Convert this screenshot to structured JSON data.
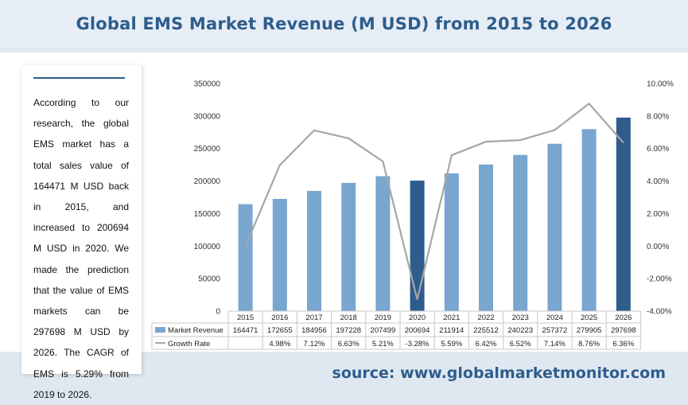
{
  "title": "Global EMS Market Revenue (M USD) from 2015 to 2026",
  "description": "According to our research, the global EMS market has a total sales value of 164471 M USD back in 2015, and increased to 200694 M USD in 2020. We made the prediction that the value of EMS markets can be 297698 M USD by 2026. The CAGR of EMS is 5.29% from 2019 to 2026.",
  "source": "source: www.globalmarketmonitor.com",
  "colors": {
    "bar": "#78a6cf",
    "bar_highlight": "#2e5d8c",
    "line": "#a6a6a6",
    "title": "#2e5d8c"
  },
  "chart_data": {
    "type": "bar",
    "categories": [
      "2015",
      "2016",
      "2017",
      "2018",
      "2019",
      "2020",
      "2021",
      "2022",
      "2023",
      "2024",
      "2025",
      "2026"
    ],
    "highlight_categories": [
      "2020",
      "2026"
    ],
    "series": [
      {
        "name": "Market Revenue",
        "type": "bar",
        "axis": "left",
        "values": [
          164471,
          172655,
          184956,
          197228,
          207499,
          200694,
          211914,
          225512,
          240223,
          257372,
          279905,
          297698
        ],
        "labels": [
          "164471",
          "172655",
          "184956",
          "197228",
          "207499",
          "200694",
          "211914",
          "225512",
          "240223",
          "257372",
          "279905",
          "297698"
        ]
      },
      {
        "name": "Growth Rate",
        "type": "line",
        "axis": "right",
        "values": [
          0,
          4.98,
          7.12,
          6.63,
          5.21,
          -3.28,
          5.59,
          6.42,
          6.52,
          7.14,
          8.76,
          6.36
        ],
        "labels": [
          "",
          "4.98%",
          "7.12%",
          "6.63%",
          "5.21%",
          "-3.28%",
          "5.59%",
          "6.42%",
          "6.52%",
          "7.14%",
          "8.76%",
          "6.36%"
        ]
      }
    ],
    "y_left": {
      "range": [
        0,
        350000
      ],
      "ticks": [
        "0",
        "50000",
        "100000",
        "150000",
        "200000",
        "250000",
        "300000",
        "350000"
      ]
    },
    "y_right": {
      "range": [
        -4,
        10
      ],
      "ticks": [
        "-4.00%",
        "-2.00%",
        "0.00%",
        "2.00%",
        "4.00%",
        "6.00%",
        "8.00%",
        "10.00%"
      ]
    },
    "grid": false,
    "legend": "data-table-bottom"
  }
}
